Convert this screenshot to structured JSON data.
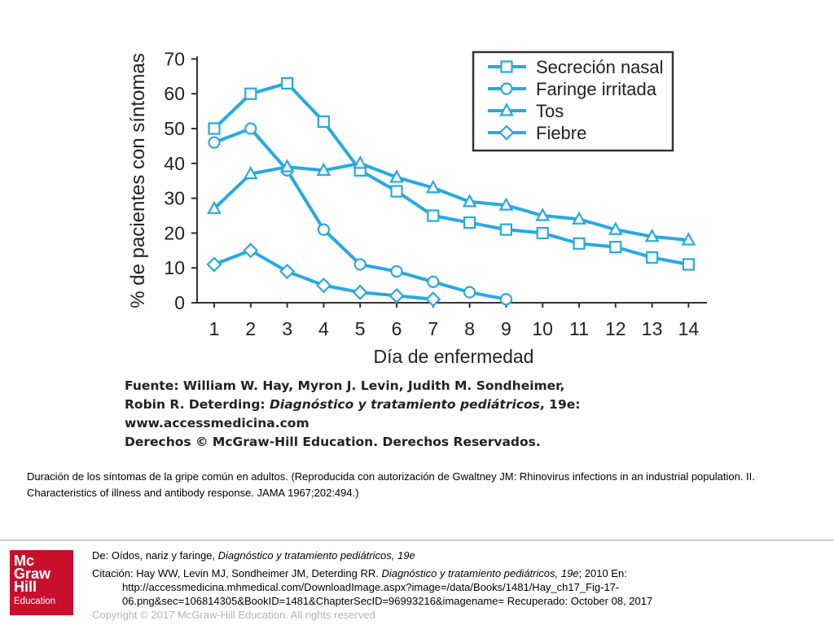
{
  "chart_data": {
    "type": "line",
    "xlabel": "Día de enfermedad",
    "ylabel": "% de pacientes con síntomas",
    "x": [
      1,
      2,
      3,
      4,
      5,
      6,
      7,
      8,
      9,
      10,
      11,
      12,
      13,
      14
    ],
    "x_ticks": [
      "1",
      "2",
      "3",
      "4",
      "5",
      "6",
      "7",
      "8",
      "9",
      "10",
      "11",
      "12",
      "13",
      "14"
    ],
    "y_ticks": [
      "0",
      "10",
      "20",
      "30",
      "40",
      "50",
      "60",
      "70"
    ],
    "ylim": [
      0,
      70
    ],
    "xlim": [
      1,
      14
    ],
    "legend_position": "top-right",
    "grid": false,
    "series": [
      {
        "name": "Secreción nasal",
        "marker": "square",
        "x": [
          1,
          2,
          3,
          4,
          5,
          6,
          7,
          8,
          9,
          10,
          11,
          12,
          13,
          14
        ],
        "values": [
          50,
          60,
          63,
          52,
          38,
          32,
          25,
          23,
          21,
          20,
          17,
          16,
          13,
          11
        ]
      },
      {
        "name": "Faringe irritada",
        "marker": "circle",
        "x": [
          1,
          2,
          3,
          4,
          5,
          6,
          7,
          8,
          9
        ],
        "values": [
          46,
          50,
          38,
          21,
          11,
          9,
          6,
          3,
          1
        ]
      },
      {
        "name": "Tos",
        "marker": "triangle",
        "x": [
          1,
          2,
          3,
          4,
          5,
          6,
          7,
          8,
          9,
          10,
          11,
          12,
          13,
          14
        ],
        "values": [
          27,
          37,
          39,
          38,
          40,
          36,
          33,
          29,
          28,
          25,
          24,
          21,
          19,
          18
        ]
      },
      {
        "name": "Fiebre",
        "marker": "diamond",
        "x": [
          1,
          2,
          3,
          4,
          5,
          6,
          7
        ],
        "values": [
          11,
          15,
          9,
          5,
          3,
          2,
          1
        ]
      }
    ],
    "color": "#27a9e1"
  },
  "source": {
    "line1": "Fuente: William W. Hay, Myron J. Levin, Judith M. Sondheimer,",
    "line2_prefix": "Robin R. Deterding: ",
    "line2_title": "Diagnóstico y tratamiento pediátricos",
    "line2_suffix": ", 19e:",
    "line3": "www.accessmedicina.com",
    "line4": "Derechos © McGraw-Hill Education. Derechos Reservados."
  },
  "caption": "Duración de los síntomas de la gripe común en adultos. (Reproducida con autorización de Gwaltney JM: Rhinovirus infections in an industrial population. II. Characteristics of illness and antibody response. JAMA 1967;202:494.)",
  "footer": {
    "from_prefix": "De: Oídos, nariz y faringe, ",
    "from_title": "Diagnóstico y tratamiento pediátricos, 19e",
    "citation_prefix": "Citación: Hay WW, Levin MJ, Sondheimer JM, Deterding RR. ",
    "citation_title": "Diagnóstico y tratamiento pediátricos, 19e",
    "citation_suffix": "; 2010 En:",
    "url_line1": "http://accessmedicina.mhmedical.com/DownloadImage.aspx?image=/data/Books/1481/Hay_ch17_Fig-17-",
    "url_line2": "06.png&sec=106814305&BookID=1481&ChapterSecID=96993216&imagename= Recuperado: October 08, 2017",
    "copyright": "Copyright © 2017 McGraw-Hill Education. All rights reserved"
  },
  "logo": {
    "line1": "Mc",
    "line2": "Graw",
    "line3": "Hill",
    "line4": "Education",
    "color": "#c8102e"
  }
}
